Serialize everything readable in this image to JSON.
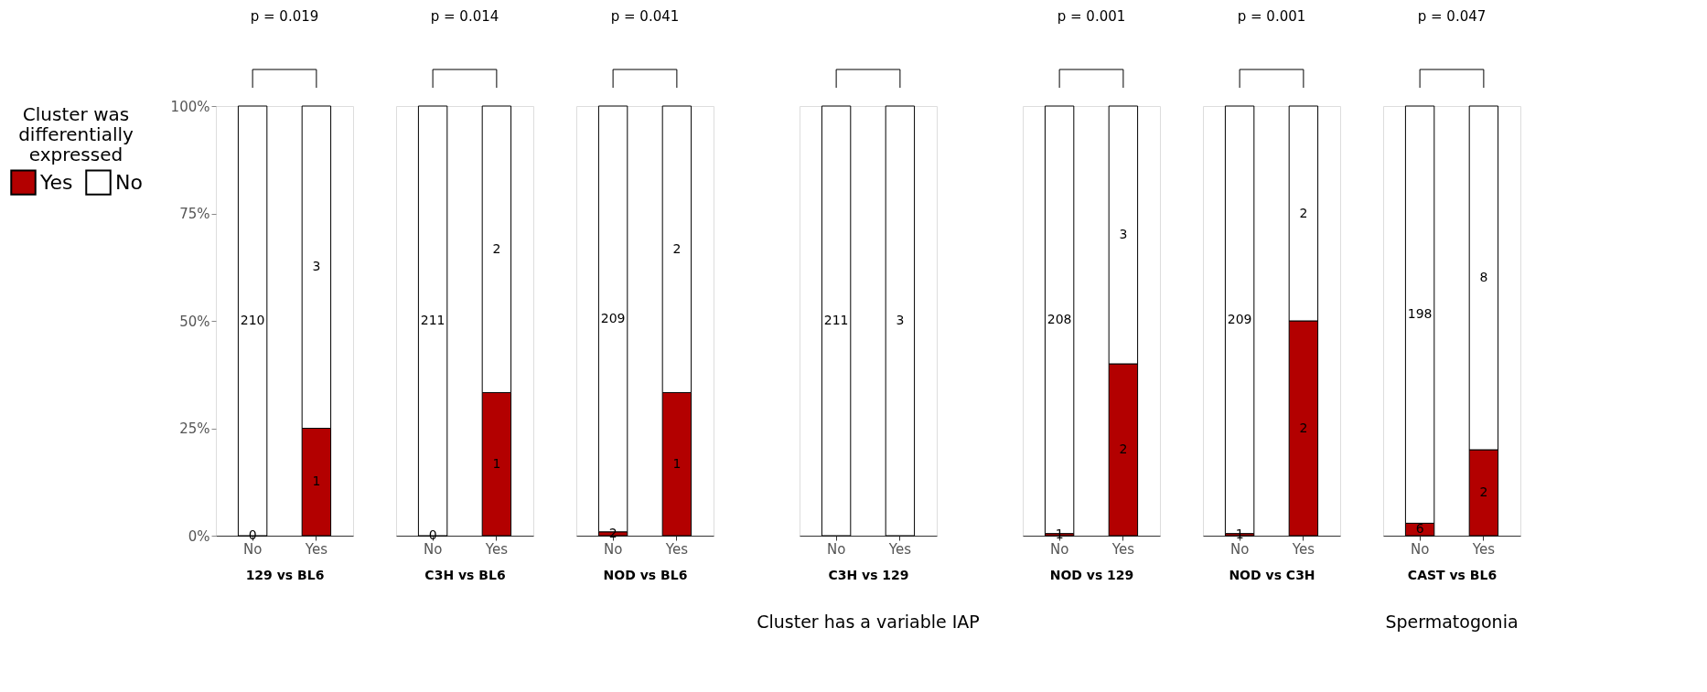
{
  "chart_data": [
    {
      "type": "bar",
      "stacked": true,
      "title": "p = 0.019",
      "xlabel": "129 vs BL6",
      "categories": [
        "No",
        "Yes"
      ],
      "ylim": [
        0,
        100
      ],
      "yticks": [
        {
          "value": 0,
          "label": "0%"
        },
        {
          "value": 25,
          "label": "25%"
        },
        {
          "value": 50,
          "label": "50%"
        },
        {
          "value": 75,
          "label": "75%"
        },
        {
          "value": 100,
          "label": "100%"
        }
      ],
      "legend": "left",
      "legend_title": "Cluster was differentially expressed",
      "series": [
        {
          "name": "Yes",
          "color": "#b30000",
          "values": [
            0,
            25
          ]
        },
        {
          "name": "No",
          "color": "#ffffff",
          "values": [
            100,
            75
          ]
        }
      ],
      "annotations": [
        "0",
        "210",
        "1",
        "3"
      ]
    },
    {
      "type": "bar",
      "stacked": true,
      "title": "p = 0.014",
      "xlabel": "C3H vs BL6",
      "categories": [
        "No",
        "Yes"
      ],
      "ylim": [
        0,
        100
      ],
      "tick_labels": "x",
      "series": [
        {
          "color": "#b30000",
          "values": [
            0,
            33.3
          ]
        },
        {
          "color": "#ffffff",
          "values": [
            100,
            66.7
          ]
        }
      ],
      "annotations": [
        "0",
        "211",
        "1",
        "2"
      ]
    },
    {
      "type": "bar",
      "stacked": true,
      "title": "p = 0.041",
      "xlabel": "NOD vs BL6",
      "categories": [
        "No",
        "Yes"
      ],
      "ylim": [
        0,
        100
      ],
      "tick_labels": "x",
      "series": [
        {
          "color": "#b30000",
          "values": [
            0.9,
            33.3
          ]
        },
        {
          "color": "#ffffff",
          "values": [
            99.1,
            66.7
          ]
        }
      ],
      "annotations": [
        "2",
        "209",
        "1",
        "2"
      ]
    },
    {
      "type": "bar",
      "stacked": true,
      "xlabel": "C3H vs 129",
      "categories": [
        "No",
        "Yes"
      ],
      "ylim": [
        0,
        100
      ],
      "tick_labels": "x",
      "series": [
        {
          "color": "#b30000",
          "values": [
            null,
            null
          ]
        },
        {
          "color": "#ffffff",
          "values": [
            100,
            100
          ]
        }
      ],
      "annotations": [
        "211",
        "3",
        "Cluster has a variable IAP"
      ]
    },
    {
      "type": "bar",
      "stacked": true,
      "title": "p = 0.001",
      "xlabel": "NOD vs 129",
      "categories": [
        "No",
        "Yes"
      ],
      "ylim": [
        0,
        100
      ],
      "tick_labels": "x",
      "series": [
        {
          "color": "#b30000",
          "values": [
            0.5,
            40
          ]
        },
        {
          "color": "#ffffff",
          "values": [
            99.5,
            60
          ]
        }
      ],
      "annotations": [
        "1",
        "208",
        "2",
        "3"
      ]
    },
    {
      "type": "bar",
      "stacked": true,
      "title": "p = 0.001",
      "xlabel": "NOD vs C3H",
      "categories": [
        "No",
        "Yes"
      ],
      "ylim": [
        0,
        100
      ],
      "tick_labels": "x",
      "series": [
        {
          "color": "#b30000",
          "values": [
            0.5,
            50
          ]
        },
        {
          "color": "#ffffff",
          "values": [
            99.5,
            50
          ]
        }
      ],
      "annotations": [
        "1",
        "209",
        "2",
        "2"
      ]
    },
    {
      "type": "bar",
      "stacked": true,
      "title": "p = 0.047",
      "xlabel": "CAST vs BL6",
      "categories": [
        "No",
        "Yes"
      ],
      "ylim": [
        0,
        100
      ],
      "tick_labels": "x",
      "series": [
        {
          "color": "#b30000",
          "values": [
            2.9,
            20
          ]
        },
        {
          "color": "#ffffff",
          "values": [
            97.1,
            80
          ]
        }
      ],
      "annotations": [
        "6",
        "198",
        "2",
        "8",
        "Spermatogonia"
      ]
    }
  ]
}
